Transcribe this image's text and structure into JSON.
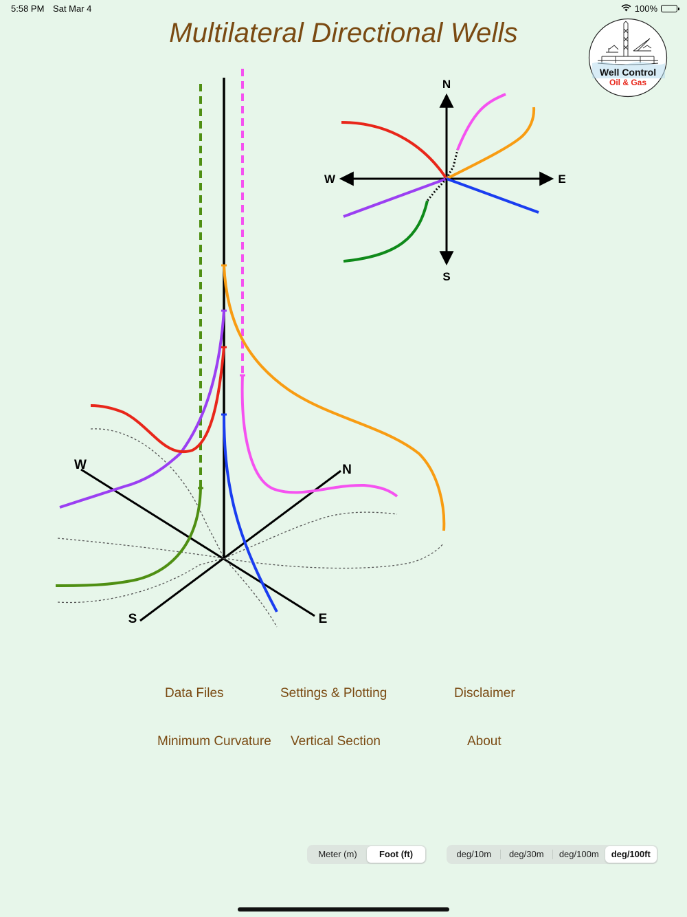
{
  "status_bar": {
    "time": "5:58 PM",
    "date": "Sat Mar 4",
    "battery": "100%",
    "battery_level": 1.0
  },
  "header": {
    "title": "Multilateral Directional Wells"
  },
  "logo": {
    "line1": "Well Control",
    "line2": "Oil & Gas"
  },
  "compass": {
    "north": "N",
    "south": "S",
    "east": "E",
    "west": "W"
  },
  "axes3d": {
    "north": "N",
    "south": "S",
    "east": "E",
    "west": "W"
  },
  "menu": {
    "data_files": "Data Files",
    "settings_plotting": "Settings & Plotting",
    "disclaimer": "Disclaimer",
    "minimum_curvature": "Minimum Curvature",
    "vertical_section": "Vertical Section",
    "about": "About"
  },
  "units": {
    "options": [
      "Meter (m)",
      "Foot (ft)"
    ],
    "selected": 1
  },
  "dogleg": {
    "options": [
      "deg/10m",
      "deg/30m",
      "deg/100m",
      "deg/100ft"
    ],
    "selected": 3
  },
  "colors": {
    "red": "#e8261a",
    "purple": "#9b3ff2",
    "orange": "#f89c12",
    "magenta": "#f552f0",
    "blue": "#1a3df0",
    "green": "#2f8a16",
    "dark_green": "#4f8f13",
    "title": "#7a4a12",
    "background": "#e7f6ea"
  }
}
